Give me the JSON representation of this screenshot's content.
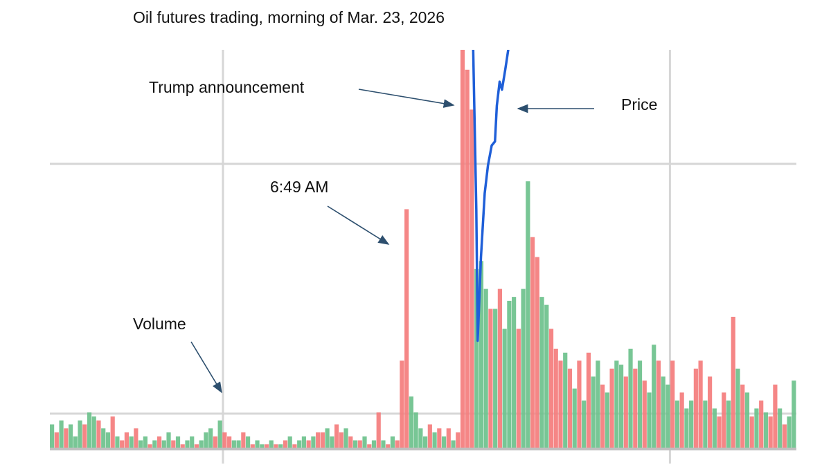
{
  "chart_data": {
    "type": "bar",
    "title": "Oil futures trading, morning of Mar. 23, 2026",
    "annotations": [
      {
        "text": "Trump announcement"
      },
      {
        "text": "Price"
      },
      {
        "text": "6:49 AM"
      },
      {
        "text": "Volume"
      }
    ],
    "ylim": [
      0,
      100
    ],
    "ygrid": [
      71.4,
      8.7
    ],
    "xgrid": [
      37.1,
      132.9
    ],
    "palette": [
      "#f47c7c",
      "#6cc18c"
    ],
    "values": [
      6,
      4,
      7,
      5,
      6,
      3,
      7,
      6,
      9,
      8,
      7,
      5,
      4,
      8,
      3,
      2,
      4,
      3,
      5,
      2,
      3,
      1,
      2,
      3,
      2,
      4,
      2,
      3,
      1,
      2,
      3,
      1,
      2,
      4,
      5,
      3,
      7,
      4,
      3,
      2,
      2,
      4,
      3,
      1,
      2,
      1,
      1,
      2,
      1,
      1,
      2,
      3,
      1,
      2,
      3,
      2,
      3,
      4,
      4,
      5,
      3,
      6,
      4,
      5,
      3,
      2,
      2,
      3,
      1,
      2,
      9,
      2,
      1,
      3,
      2,
      22,
      60,
      13,
      9,
      5,
      3,
      6,
      4,
      5,
      3,
      5,
      2,
      4,
      105,
      95,
      85,
      45,
      47,
      40,
      35,
      35,
      40,
      30,
      37,
      38,
      30,
      40,
      67,
      53,
      48,
      38,
      36,
      30,
      25,
      22,
      24,
      20,
      15,
      22,
      12,
      24,
      18,
      22,
      16,
      14,
      20,
      22,
      21,
      18,
      25,
      20,
      22,
      17,
      14,
      26,
      22,
      18,
      16,
      22,
      12,
      14,
      10,
      12,
      20,
      22,
      12,
      18,
      10,
      8,
      14,
      12,
      33,
      20,
      16,
      14,
      8,
      10,
      12,
      9,
      8,
      16,
      10,
      6,
      8,
      17
    ],
    "color_index": [
      1,
      0,
      1,
      0,
      1,
      1,
      1,
      0,
      1,
      1,
      0,
      1,
      1,
      0,
      1,
      0,
      0,
      1,
      0,
      1,
      1,
      0,
      1,
      0,
      1,
      1,
      0,
      1,
      0,
      1,
      1,
      0,
      1,
      1,
      1,
      0,
      1,
      0,
      0,
      1,
      1,
      0,
      1,
      0,
      1,
      1,
      0,
      1,
      0,
      1,
      0,
      1,
      0,
      1,
      1,
      0,
      1,
      0,
      0,
      1,
      1,
      0,
      0,
      1,
      0,
      1,
      0,
      1,
      0,
      1,
      0,
      1,
      0,
      1,
      0,
      0,
      0,
      1,
      1,
      1,
      1,
      0,
      1,
      0,
      1,
      0,
      1,
      0,
      0,
      0,
      0,
      1,
      1,
      1,
      0,
      1,
      0,
      1,
      1,
      1,
      0,
      1,
      1,
      0,
      0,
      1,
      1,
      0,
      0,
      0,
      1,
      0,
      1,
      0,
      1,
      0,
      1,
      1,
      0,
      1,
      0,
      1,
      1,
      0,
      1,
      0,
      1,
      0,
      1,
      1,
      0,
      1,
      1,
      0,
      1,
      0,
      1,
      1,
      0,
      0,
      1,
      0,
      1,
      0,
      0,
      1,
      0,
      1,
      0,
      1,
      0,
      1,
      0,
      1,
      0,
      0,
      1,
      0,
      1,
      1
    ],
    "y2lim": [
      0,
      100
    ],
    "price": {
      "color": "#1f5fd8",
      "axis": "y2",
      "x": [
        90.7,
        91.4,
        91.7,
        92.4,
        93.2,
        93.9,
        94.7,
        95.4,
        95.8,
        96.4,
        96.9,
        97.6,
        98.5
      ],
      "values": [
        102,
        60,
        27,
        48,
        64,
        71,
        76,
        77,
        86,
        92,
        90,
        95,
        102
      ]
    }
  }
}
